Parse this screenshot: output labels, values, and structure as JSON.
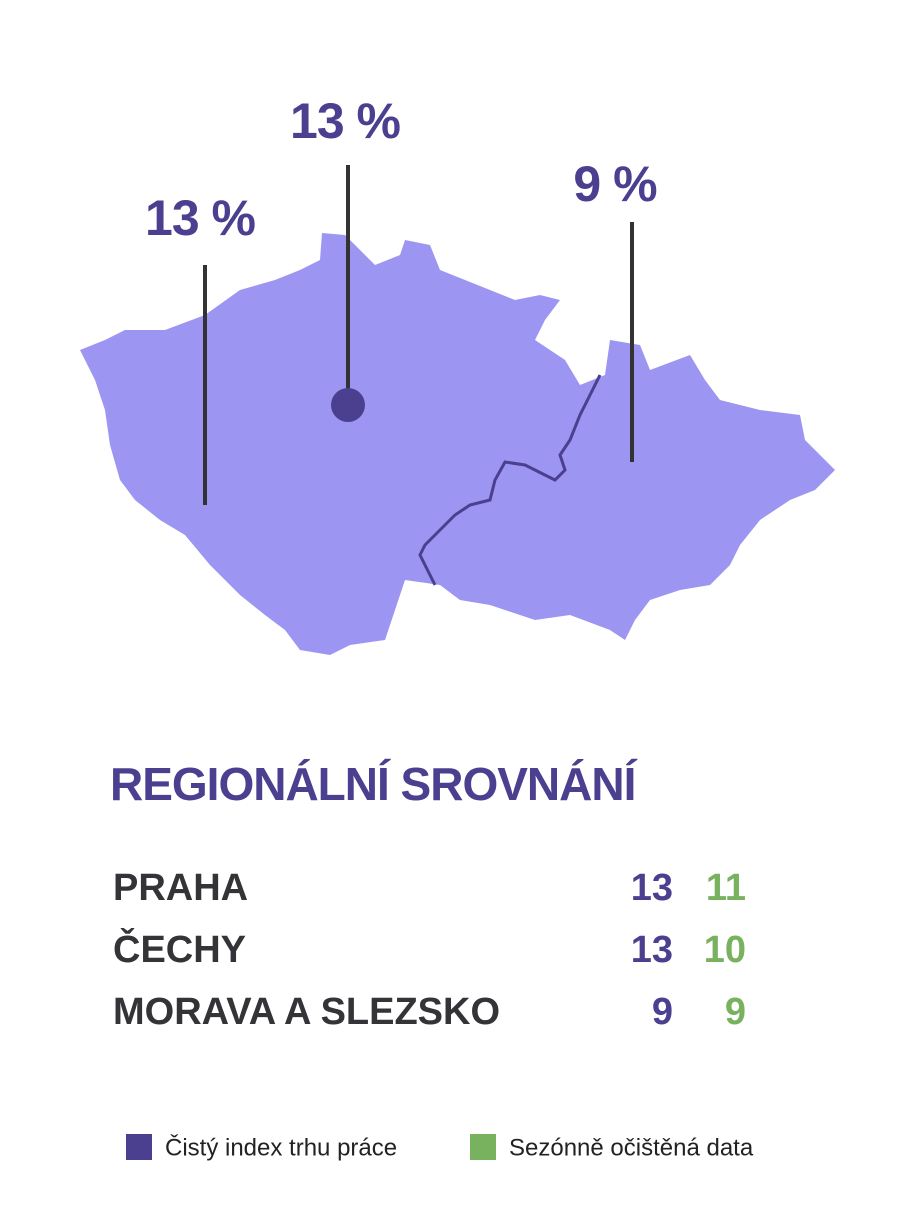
{
  "map": {
    "labels": [
      "13 %",
      "13 %",
      "9 %"
    ]
  },
  "title": "REGIONÁLNÍ SROVNÁNÍ",
  "table": {
    "rows": [
      [
        "PRAHA",
        "13",
        "11"
      ],
      [
        "ČECHY",
        "13",
        "10"
      ],
      [
        "MORAVA A SLEZSKO",
        "9",
        "9"
      ]
    ]
  },
  "legend": [
    "Čistý index trhu práce",
    "Sezónně očištěná data"
  ]
}
